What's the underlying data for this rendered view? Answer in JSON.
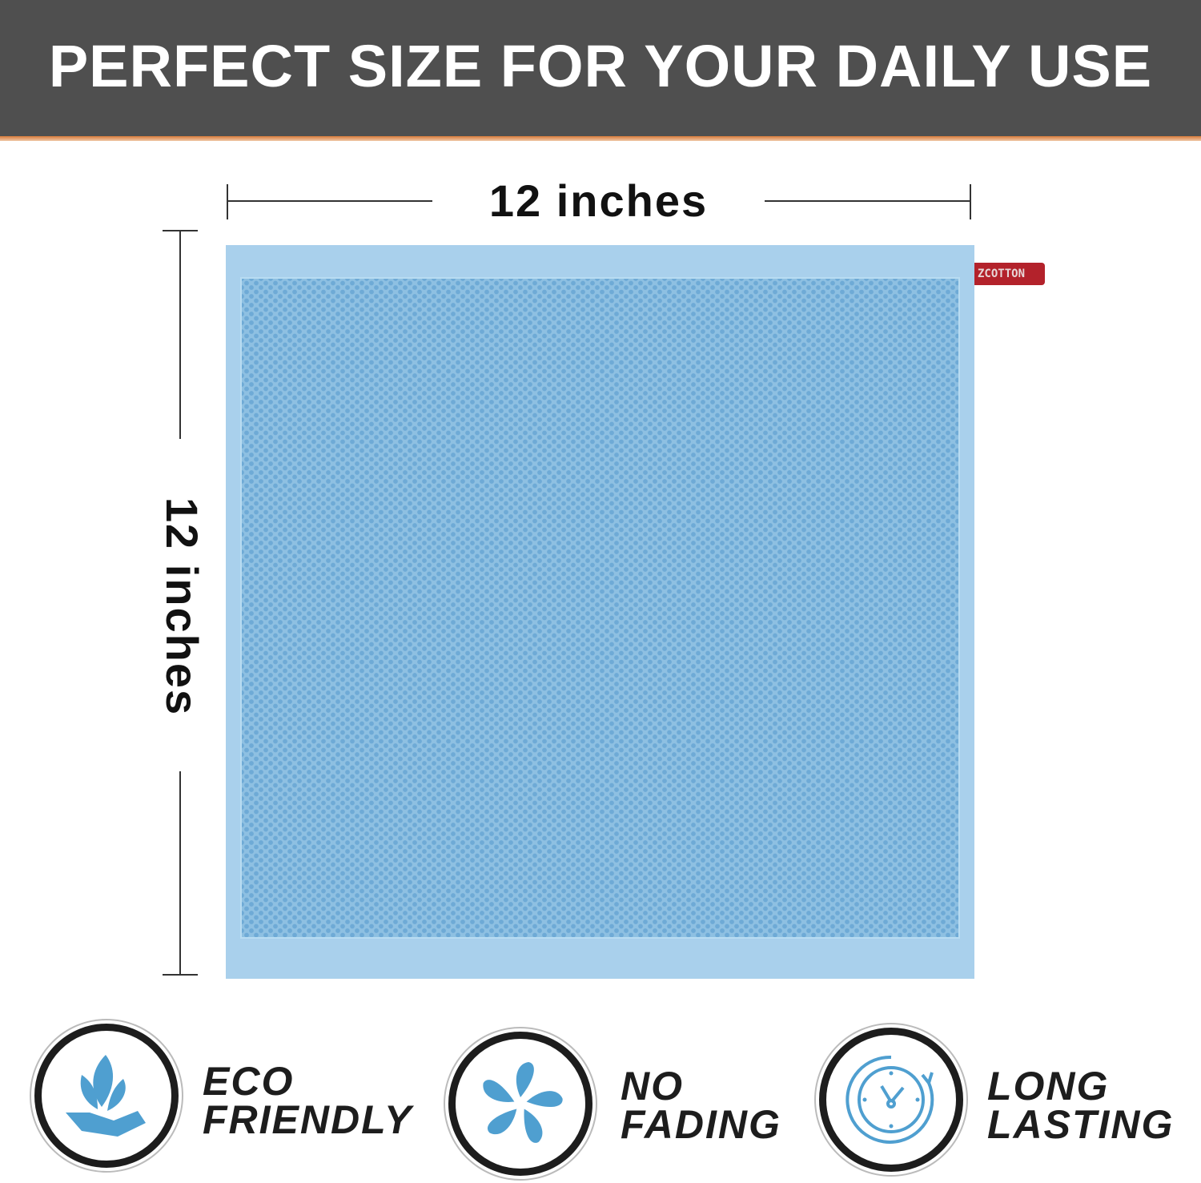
{
  "header": {
    "title": "PERFECT SIZE FOR YOUR DAILY USE"
  },
  "dimensions": {
    "width_label": "12 inches",
    "height_label": "12 inches"
  },
  "product": {
    "tag_text": "ZCOTTON",
    "color": "#8ec0e2"
  },
  "features": [
    {
      "line1": "ECO",
      "line2": "FRIENDLY",
      "icon": "leaf-hand-icon"
    },
    {
      "line1": "NO",
      "line2": "FADING",
      "icon": "pinwheel-icon"
    },
    {
      "line1": "LONG",
      "line2": "LASTING",
      "icon": "clock-refresh-icon"
    }
  ],
  "colors": {
    "header_bg": "#4f4f4f",
    "accent": "#d77a3a",
    "icon_blue": "#4f9fd0"
  }
}
